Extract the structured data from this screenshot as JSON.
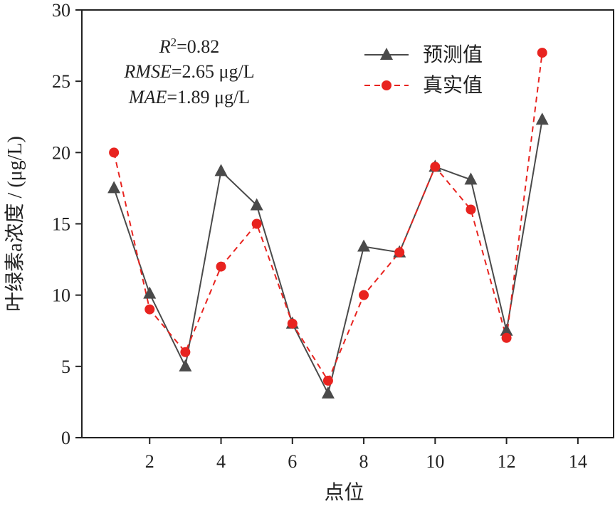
{
  "chart_data": {
    "type": "line",
    "xlabel": "点位",
    "ylabel": "叶绿素a浓度 / (μg/L)",
    "xlim": [
      0.1,
      15
    ],
    "ylim": [
      0,
      30
    ],
    "xticks": [
      2,
      4,
      6,
      8,
      10,
      12,
      14
    ],
    "yticks": [
      0,
      5,
      10,
      15,
      20,
      25,
      30
    ],
    "x": [
      1,
      2,
      3,
      4,
      5,
      6,
      7,
      8,
      9,
      10,
      11,
      12,
      13
    ],
    "series": [
      {
        "name": "预测值",
        "values": [
          17.5,
          10.1,
          5.0,
          18.7,
          16.3,
          8.0,
          3.1,
          13.4,
          13.0,
          19.0,
          18.1,
          7.5,
          22.3
        ],
        "color": "#4a4a4a",
        "marker": "triangle",
        "line": "solid"
      },
      {
        "name": "真实值",
        "values": [
          20,
          9,
          6,
          12,
          15,
          8,
          4,
          10,
          13,
          19,
          16,
          7,
          27
        ],
        "color": "#e8231f",
        "marker": "circle",
        "line": "dashed"
      }
    ],
    "grid": false,
    "legend_position": "top-right",
    "stats": {
      "r2_var": "R",
      "r2_sup": "2",
      "r2_value": "=0.82",
      "rmse_var": "RMSE",
      "rmse_value": "=2.65 μg/L",
      "mae_var": "MAE",
      "mae_value": "=1.89 μg/L"
    }
  }
}
